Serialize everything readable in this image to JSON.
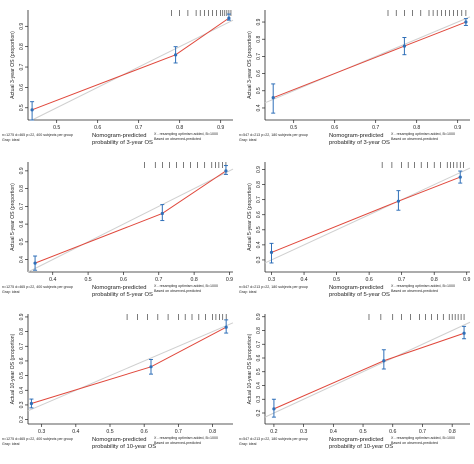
{
  "chart_data": [
    {
      "type": "scatter",
      "ylabel": "Actual 3-year OS (proportion)",
      "xlabel_line1": "Nomogram-predicted",
      "xlabel_line2": "probability of 3-year OS",
      "note_left": "n=1275 d=465 p=22, 400 subjects per group",
      "note_left2": "Gray: ideal",
      "note_right": "X - resampling optimism added, B=1000",
      "note_right2": "Based on observed-predicted",
      "xlim": [
        0.43,
        0.93
      ],
      "ylim": [
        0.44,
        0.98
      ],
      "xticks": [
        0.5,
        0.6,
        0.7,
        0.8,
        0.9
      ],
      "yticks": [
        0.5,
        0.6,
        0.7,
        0.8,
        0.9
      ],
      "points": [
        {
          "x": 0.44,
          "y": 0.49,
          "lo": 0.44,
          "hi": 0.53
        },
        {
          "x": 0.79,
          "y": 0.76,
          "lo": 0.72,
          "hi": 0.8
        },
        {
          "x": 0.92,
          "y": 0.94,
          "lo": 0.93,
          "hi": 0.96
        }
      ],
      "rug": [
        0.78,
        0.8,
        0.82,
        0.84,
        0.85,
        0.86,
        0.87,
        0.88,
        0.89,
        0.9,
        0.905,
        0.91,
        0.915,
        0.92,
        0.925
      ]
    },
    {
      "type": "scatter",
      "ylabel": "Actual 3-year OS (proportion)",
      "xlabel_line1": "Nomogram-predicted",
      "xlabel_line2": "probability of 3-year OS",
      "note_left": "n=547 d=213 p=22, 180 subjects per group",
      "note_left2": "Gray: ideal",
      "note_right": "X - resampling optimism added, B=1000",
      "note_right2": "Based on observed-predicted",
      "xlim": [
        0.43,
        0.93
      ],
      "ylim": [
        0.33,
        0.97
      ],
      "xticks": [
        0.5,
        0.6,
        0.7,
        0.8,
        0.9
      ],
      "yticks": [
        0.4,
        0.5,
        0.6,
        0.7,
        0.8,
        0.9
      ],
      "points": [
        {
          "x": 0.45,
          "y": 0.46,
          "lo": 0.37,
          "hi": 0.54
        },
        {
          "x": 0.77,
          "y": 0.76,
          "lo": 0.71,
          "hi": 0.81
        },
        {
          "x": 0.92,
          "y": 0.9,
          "lo": 0.88,
          "hi": 0.92
        }
      ],
      "rug": [
        0.73,
        0.75,
        0.77,
        0.79,
        0.81,
        0.83,
        0.84,
        0.85,
        0.86,
        0.87,
        0.88,
        0.89,
        0.9,
        0.91,
        0.92
      ]
    },
    {
      "type": "scatter",
      "ylabel": "Actual 5-year OS (proportion)",
      "xlabel_line1": "Nomogram-predicted",
      "xlabel_line2": "probability of 5-year OS",
      "note_left": "n=1275 d=465 p=22, 400 subjects per group",
      "note_left2": "Gray: ideal",
      "note_right": "X - resampling optimism added, B=1000",
      "note_right2": "Based on observed-predicted",
      "xlim": [
        0.33,
        0.91
      ],
      "ylim": [
        0.33,
        0.95
      ],
      "xticks": [
        0.4,
        0.5,
        0.6,
        0.7,
        0.8,
        0.9
      ],
      "yticks": [
        0.4,
        0.5,
        0.6,
        0.7,
        0.8,
        0.9
      ],
      "points": [
        {
          "x": 0.35,
          "y": 0.38,
          "lo": 0.34,
          "hi": 0.42
        },
        {
          "x": 0.71,
          "y": 0.66,
          "lo": 0.62,
          "hi": 0.71
        },
        {
          "x": 0.89,
          "y": 0.9,
          "lo": 0.88,
          "hi": 0.93
        }
      ],
      "rug": [
        0.66,
        0.69,
        0.71,
        0.73,
        0.75,
        0.77,
        0.79,
        0.81,
        0.83,
        0.85,
        0.86,
        0.87,
        0.88,
        0.89
      ]
    },
    {
      "type": "scatter",
      "ylabel": "Actual 5-year OS (proportion)",
      "xlabel_line1": "Nomogram-predicted",
      "xlabel_line2": "probability of 5-year OS",
      "note_left": "n=547 d=213 p=22, 180 subjects per group",
      "note_left2": "Gray: ideal",
      "note_right": "X - resampling optimism added, B=1000",
      "note_right2": "Based on observed-predicted",
      "xlim": [
        0.28,
        0.91
      ],
      "ylim": [
        0.22,
        0.95
      ],
      "xticks": [
        0.3,
        0.4,
        0.5,
        0.6,
        0.7,
        0.8,
        0.9
      ],
      "yticks": [
        0.3,
        0.4,
        0.5,
        0.6,
        0.7,
        0.8,
        0.9
      ],
      "points": [
        {
          "x": 0.3,
          "y": 0.35,
          "lo": 0.28,
          "hi": 0.41
        },
        {
          "x": 0.69,
          "y": 0.69,
          "lo": 0.63,
          "hi": 0.76
        },
        {
          "x": 0.88,
          "y": 0.85,
          "lo": 0.81,
          "hi": 0.89
        }
      ],
      "rug": [
        0.64,
        0.67,
        0.7,
        0.72,
        0.74,
        0.76,
        0.78,
        0.8,
        0.82,
        0.84,
        0.85,
        0.86,
        0.87,
        0.88,
        0.89
      ]
    },
    {
      "type": "scatter",
      "ylabel": "Actual 10-year OS (proportion)",
      "xlabel_line1": "Nomogram-predicted",
      "xlabel_line2": "probability of 10-year OS",
      "note_left": "n=1275 d=465 p=22, 400 subjects per group",
      "note_left2": "Gray: ideal",
      "note_right": "X - resampling optimism added, B=1000",
      "note_right2": "Based on observed-predicted",
      "xlim": [
        0.26,
        0.86
      ],
      "ylim": [
        0.17,
        0.92
      ],
      "xticks": [
        0.3,
        0.4,
        0.5,
        0.6,
        0.7,
        0.8
      ],
      "yticks": [
        0.2,
        0.3,
        0.4,
        0.5,
        0.6,
        0.7,
        0.8,
        0.9
      ],
      "points": [
        {
          "x": 0.27,
          "y": 0.31,
          "lo": 0.28,
          "hi": 0.34
        },
        {
          "x": 0.62,
          "y": 0.56,
          "lo": 0.51,
          "hi": 0.61
        },
        {
          "x": 0.84,
          "y": 0.83,
          "lo": 0.79,
          "hi": 0.88
        }
      ],
      "rug": [
        0.55,
        0.58,
        0.61,
        0.64,
        0.67,
        0.7,
        0.72,
        0.74,
        0.76,
        0.78,
        0.8,
        0.81,
        0.82,
        0.83,
        0.84
      ]
    },
    {
      "type": "scatter",
      "ylabel": "Actual 10-year OS (proportion)",
      "xlabel_line1": "Nomogram-predicted",
      "xlabel_line2": "probability of 10-year OS",
      "note_left": "n=547 d=213 p=22, 180 subjects per group",
      "note_left2": "Gray: ideal",
      "note_right": "X - resampling optimism added, B=1000",
      "note_right2": "Based on observed-predicted",
      "xlim": [
        0.17,
        0.86
      ],
      "ylim": [
        0.12,
        0.92
      ],
      "xticks": [
        0.2,
        0.3,
        0.4,
        0.5,
        0.6,
        0.7,
        0.8
      ],
      "yticks": [
        0.2,
        0.3,
        0.4,
        0.5,
        0.6,
        0.7,
        0.8,
        0.9
      ],
      "points": [
        {
          "x": 0.2,
          "y": 0.23,
          "lo": 0.17,
          "hi": 0.3
        },
        {
          "x": 0.57,
          "y": 0.58,
          "lo": 0.52,
          "hi": 0.66
        },
        {
          "x": 0.84,
          "y": 0.78,
          "lo": 0.74,
          "hi": 0.83
        }
      ],
      "rug": [
        0.52,
        0.56,
        0.6,
        0.63,
        0.66,
        0.69,
        0.71,
        0.73,
        0.75,
        0.77,
        0.79,
        0.8,
        0.81,
        0.82,
        0.83,
        0.84
      ]
    }
  ],
  "colors": {
    "calibration_line": "#e0473b",
    "ideal_line": "#cfcfcf",
    "points_and_errorbars": "#2f6fb8",
    "axes": "#222222"
  }
}
